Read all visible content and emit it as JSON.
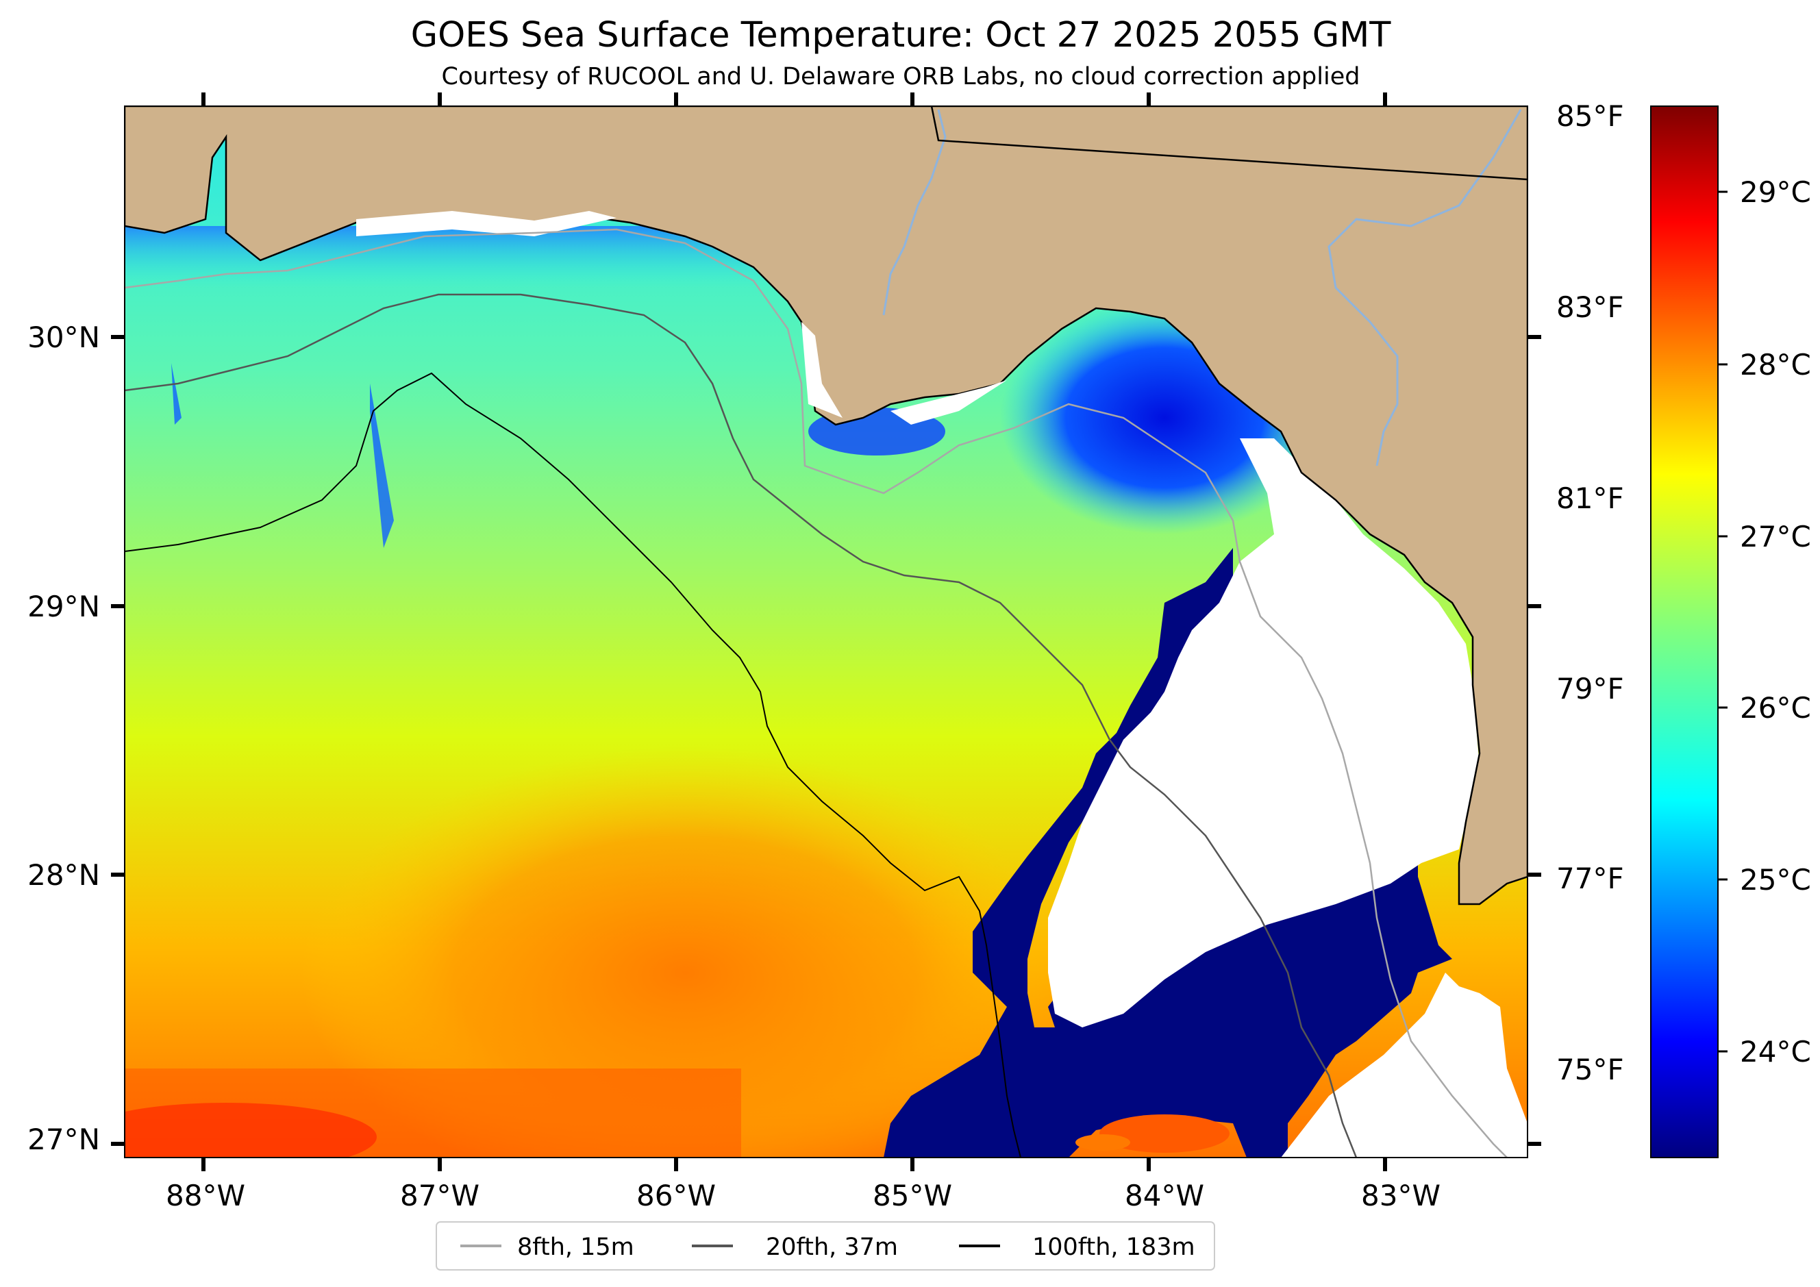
{
  "title": "GOES Sea Surface Temperature: Oct 27 2025 2055 GMT",
  "subtitle": "Courtesy of RUCOOL and U. Delaware ORB Labs, no cloud correction applied",
  "axes": {
    "lon_ticks": [
      "88°W",
      "87°W",
      "86°W",
      "85°W",
      "84°W",
      "83°W"
    ],
    "lat_ticks": [
      "30°N",
      "29°N",
      "28°N",
      "27°N"
    ],
    "fahrenheit_ticks": [
      "85°F",
      "83°F",
      "81°F",
      "79°F",
      "77°F",
      "75°F"
    ],
    "celsius_ticks": [
      "29°C",
      "28°C",
      "27°C",
      "26°C",
      "25°C",
      "24°C"
    ]
  },
  "legend": {
    "placement": "bottom-center",
    "items": [
      {
        "label": "8fth, 15m",
        "color": "#a8a8a8"
      },
      {
        "label": "20fth, 37m",
        "color": "#555555"
      },
      {
        "label": "100fth, 183m",
        "color": "#000000"
      }
    ]
  },
  "colors": {
    "land": "#cfb28b",
    "river": "#8fb4dd",
    "colormap": "jet"
  }
}
